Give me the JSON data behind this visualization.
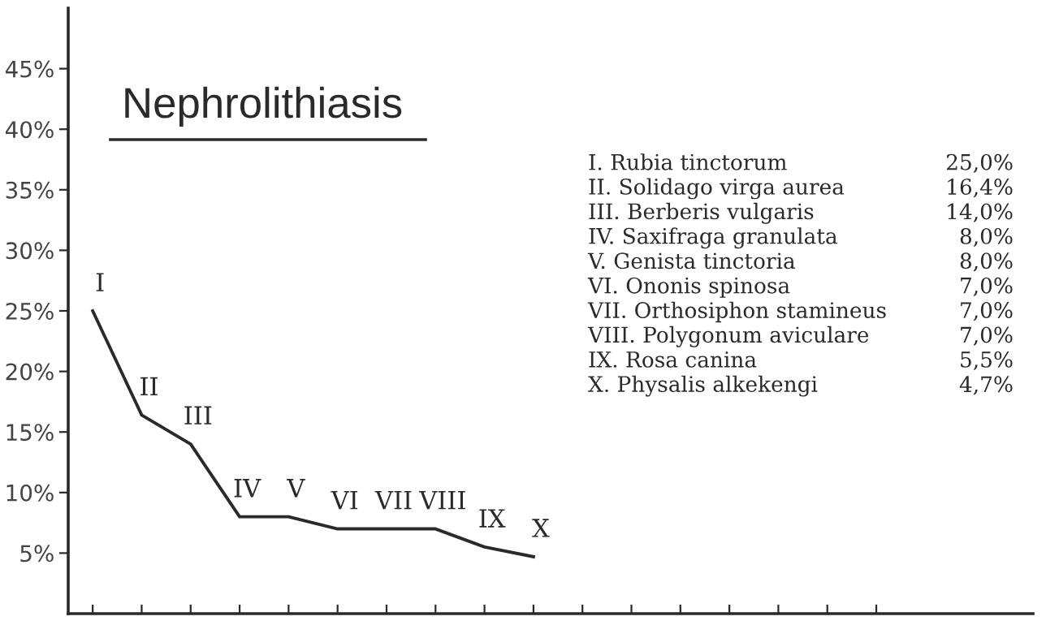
{
  "chart_data": {
    "type": "line",
    "title": "Nephrolithiasis",
    "categories": [
      "I",
      "II",
      "III",
      "IV",
      "V",
      "VI",
      "VII",
      "VIII",
      "IX",
      "X",
      null,
      null,
      null,
      null,
      null,
      null,
      null
    ],
    "series": [
      {
        "color": "#2a2a2a",
        "values": [
          25.0,
          16.4,
          14.0,
          8.0,
          8.0,
          7.0,
          7.0,
          7.0,
          5.5,
          4.7,
          null,
          null,
          null,
          null,
          null,
          null,
          null
        ]
      }
    ],
    "annotations": [
      "I. Rubia tinctorum",
      "25,0%",
      "II. Solidago virga aurea",
      "16,4%",
      "III. Berberis vulgaris",
      "14,0%",
      "IV. Saxifraga granulata",
      "8,0%",
      "V. Genista tinctoria",
      "8,0%",
      "VI. Ononis spinosa",
      "7,0%",
      "VII. Orthosiphon stamineus",
      "7,0%",
      "VIII. Polygonum aviculare",
      "7,0%",
      "IX. Rosa canina",
      "5,5%",
      "X. Physalis alkekengi",
      "4,7%"
    ],
    "ylim": [
      0,
      50
    ],
    "yticks": [
      {
        "value": 5,
        "label": "5%"
      },
      {
        "value": 10,
        "label": "10%"
      },
      {
        "value": 15,
        "label": "15%"
      },
      {
        "value": 20,
        "label": "20%"
      },
      {
        "value": 25,
        "label": "25%"
      },
      {
        "value": 30,
        "label": "30%"
      },
      {
        "value": 35,
        "label": "35%"
      },
      {
        "value": 40,
        "label": "40%"
      },
      {
        "value": 45,
        "label": "45%"
      }
    ],
    "tick_labels": "y",
    "grid": false,
    "legend": false,
    "line_style": "solid"
  }
}
